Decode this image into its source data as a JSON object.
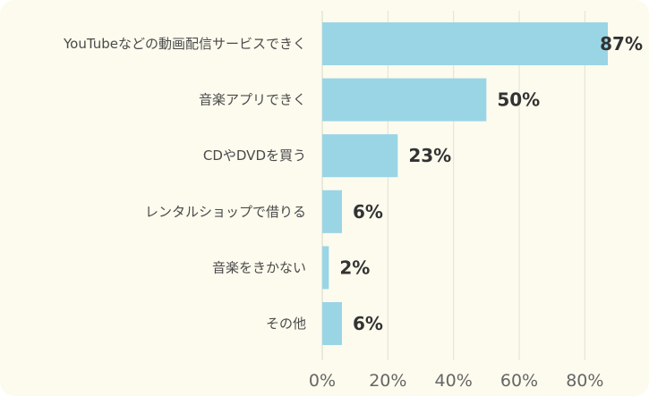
{
  "chart_data": {
    "type": "bar",
    "orientation": "horizontal",
    "categories": [
      "YouTubeなどの動画配信サービスできく",
      "音楽アプリできく",
      "CDやDVDを買う",
      "レンタルショップで借りる",
      "音楽をきかない",
      "その他"
    ],
    "values": [
      87,
      50,
      23,
      6,
      2,
      6
    ],
    "value_labels": [
      "87%",
      "50%",
      "23%",
      "6%",
      "2%",
      "6%"
    ],
    "xlim": [
      0,
      90
    ],
    "xticks": [
      0,
      20,
      40,
      60,
      80
    ],
    "xtick_labels": [
      "0%",
      "20%",
      "40%",
      "60%",
      "80%"
    ],
    "grid": true,
    "title": "",
    "xlabel": "",
    "ylabel": "",
    "bar_color": "#9ad5e5",
    "background_color": "#fcfbee"
  }
}
